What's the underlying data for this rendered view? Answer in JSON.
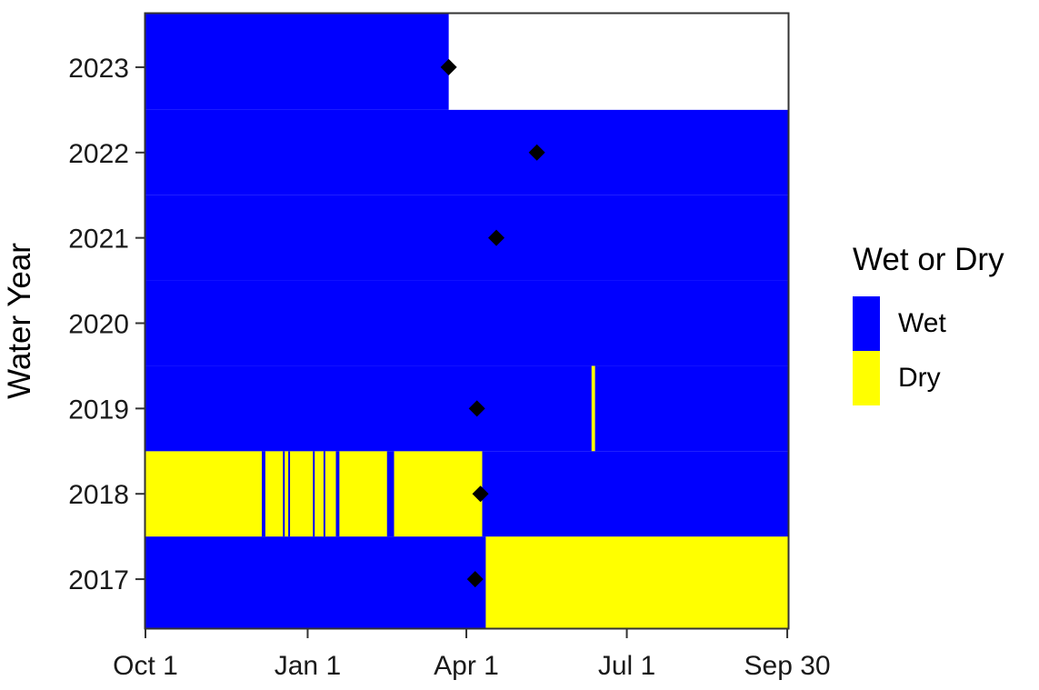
{
  "chart_data": {
    "type": "heatmap",
    "ylabel": "Water Year",
    "legend": {
      "title": "Wet or Dry",
      "placement": "right",
      "entries": [
        {
          "label": "Wet",
          "color": "#0000ff"
        },
        {
          "label": "Dry",
          "color": "#ffff00"
        }
      ]
    },
    "x_axis": {
      "unit": "day of water year",
      "range": [
        0,
        365
      ],
      "ticks": [
        {
          "label": "Oct 1",
          "day": 0
        },
        {
          "label": "Jan 1",
          "day": 92
        },
        {
          "label": "Apr 1",
          "day": 182
        },
        {
          "label": "Jul 1",
          "day": 273
        },
        {
          "label": "Sep 30",
          "day": 364
        }
      ]
    },
    "y_axis": {
      "categories": [
        "2017",
        "2018",
        "2019",
        "2020",
        "2021",
        "2022",
        "2023"
      ]
    },
    "colors": {
      "wet": "#0000ff",
      "dry": "#ffff00",
      "marker": "#000000"
    },
    "series": [
      {
        "year": "2017",
        "dry": [
          [
            193,
            365
          ]
        ]
      },
      {
        "year": "2018",
        "dry": [
          [
            0,
            66
          ],
          [
            68,
            78
          ],
          [
            79,
            81
          ],
          [
            82,
            95
          ],
          [
            96,
            101
          ],
          [
            102,
            108
          ],
          [
            110,
            137
          ],
          [
            141,
            191
          ]
        ]
      },
      {
        "year": "2019",
        "dry": [
          [
            253,
            255
          ]
        ]
      },
      {
        "year": "2020",
        "dry": []
      },
      {
        "year": "2021",
        "dry": []
      },
      {
        "year": "2022",
        "dry": []
      },
      {
        "year": "2023",
        "dry": [],
        "data_end": 172
      }
    ],
    "markers": [
      {
        "year": "2017",
        "day": 187
      },
      {
        "year": "2018",
        "day": 190
      },
      {
        "year": "2019",
        "day": 188
      },
      {
        "year": "2021",
        "day": 199
      },
      {
        "year": "2022",
        "day": 222
      },
      {
        "year": "2023",
        "day": 172
      }
    ]
  }
}
